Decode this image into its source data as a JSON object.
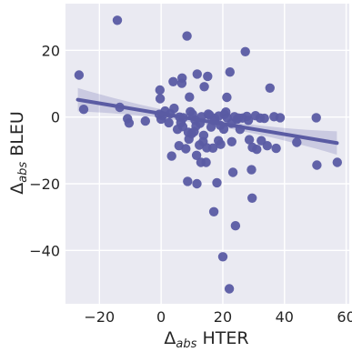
{
  "chart_data": {
    "type": "scatter",
    "title": "",
    "xlabel": "abs HTER",
    "xlabel_prefix": "Δ",
    "xlabel_subscript": "abs",
    "xlabel_text": " HTER",
    "ylabel_prefix": "Δ",
    "ylabel_subscript": "abs",
    "ylabel_text": " BLEU",
    "xlim": [
      -31,
      61
    ],
    "ylim": [
      -56,
      34
    ],
    "xticks": [
      -20,
      0,
      20,
      40,
      60
    ],
    "yticks": [
      -40,
      -20,
      0,
      20
    ],
    "xtick_labels": [
      "−20",
      "0",
      "20",
      "40",
      "60"
    ],
    "ytick_labels": [
      "−40",
      "−20",
      "0",
      "20"
    ],
    "grid": true,
    "background": "#eaeaf2",
    "point_color": "#5a5ba3",
    "regression": {
      "x": [
        -27,
        57
      ],
      "y": [
        5.2,
        -7.8
      ],
      "ci_halfwidth_end": 3.5,
      "ci_halfwidth_mid": 1.0
    },
    "points": [
      [
        -26.6,
        12.6
      ],
      [
        -25.1,
        2.3
      ],
      [
        -14.2,
        29.0
      ],
      [
        -13.4,
        2.9
      ],
      [
        -10.9,
        -0.5
      ],
      [
        -10.4,
        -1.8
      ],
      [
        -5.1,
        -1.2
      ],
      [
        -0.6,
        0.8
      ],
      [
        -0.4,
        8.1
      ],
      [
        -0.3,
        5.5
      ],
      [
        0.0,
        -0.6
      ],
      [
        0.5,
        0.4
      ],
      [
        1.3,
        1.8
      ],
      [
        2.5,
        -1.7
      ],
      [
        3.0,
        1.0
      ],
      [
        3.4,
        -11.7
      ],
      [
        3.9,
        10.6
      ],
      [
        4.2,
        2.6
      ],
      [
        5.3,
        -3.7
      ],
      [
        5.8,
        -8.6
      ],
      [
        6.0,
        0.0
      ],
      [
        6.4,
        -1.7
      ],
      [
        6.7,
        10.1
      ],
      [
        6.8,
        11.7
      ],
      [
        7.0,
        -2.9
      ],
      [
        7.2,
        -0.2
      ],
      [
        8.0,
        -9.5
      ],
      [
        8.4,
        24.3
      ],
      [
        8.6,
        -19.3
      ],
      [
        8.8,
        -4.6
      ],
      [
        9.0,
        -6.6
      ],
      [
        9.2,
        6.0
      ],
      [
        9.5,
        1.6
      ],
      [
        9.9,
        -5.0
      ],
      [
        10.2,
        0.8
      ],
      [
        10.7,
        -4.4
      ],
      [
        11.0,
        -0.9
      ],
      [
        11.3,
        -2.7
      ],
      [
        11.5,
        -11.5
      ],
      [
        11.6,
        -20.0
      ],
      [
        11.7,
        12.9
      ],
      [
        12.4,
        -8.4
      ],
      [
        12.6,
        -1.9
      ],
      [
        12.9,
        -13.6
      ],
      [
        13.1,
        0.1
      ],
      [
        13.6,
        -7.4
      ],
      [
        13.8,
        -5.5
      ],
      [
        14.0,
        9.1
      ],
      [
        14.6,
        -13.6
      ],
      [
        14.8,
        -9.2
      ],
      [
        15.1,
        12.2
      ],
      [
        15.3,
        0.9
      ],
      [
        15.7,
        0.6
      ],
      [
        16.2,
        -3.0
      ],
      [
        16.8,
        -9.3
      ],
      [
        17.1,
        -28.4
      ],
      [
        17.3,
        -1.1
      ],
      [
        17.4,
        -0.4
      ],
      [
        18.1,
        -19.7
      ],
      [
        18.6,
        -7.1
      ],
      [
        18.7,
        0.3
      ],
      [
        19.2,
        -2.5
      ],
      [
        19.3,
        -8.2
      ],
      [
        20.0,
        -41.9
      ],
      [
        20.3,
        -3.6
      ],
      [
        20.5,
        0.8
      ],
      [
        21.0,
        1.5
      ],
      [
        21.3,
        5.9
      ],
      [
        21.4,
        -0.2
      ],
      [
        22.1,
        -51.5
      ],
      [
        22.3,
        13.5
      ],
      [
        22.8,
        -1.9
      ],
      [
        22.9,
        -7.4
      ],
      [
        23.3,
        -16.6
      ],
      [
        23.8,
        0.1
      ],
      [
        24.1,
        -32.6
      ],
      [
        24.6,
        -0.7
      ],
      [
        25.1,
        -0.3
      ],
      [
        25.6,
        -3.7
      ],
      [
        26.4,
        -0.3
      ],
      [
        27.3,
        19.6
      ],
      [
        27.8,
        0.2
      ],
      [
        28.3,
        -1.0
      ],
      [
        28.6,
        -6.8
      ],
      [
        29.3,
        -15.8
      ],
      [
        29.5,
        -24.3
      ],
      [
        29.6,
        -9.1
      ],
      [
        30.6,
        0.4
      ],
      [
        31.0,
        -9.7
      ],
      [
        32.1,
        -0.3
      ],
      [
        32.5,
        -7.1
      ],
      [
        33.5,
        -0.4
      ],
      [
        34.4,
        -8.6
      ],
      [
        35.3,
        8.7
      ],
      [
        36.6,
        0.1
      ],
      [
        37.3,
        -9.4
      ],
      [
        38.6,
        -0.2
      ],
      [
        44.0,
        -7.6
      ],
      [
        50.3,
        -0.2
      ],
      [
        50.5,
        -14.4
      ],
      [
        57.1,
        -13.6
      ]
    ]
  }
}
